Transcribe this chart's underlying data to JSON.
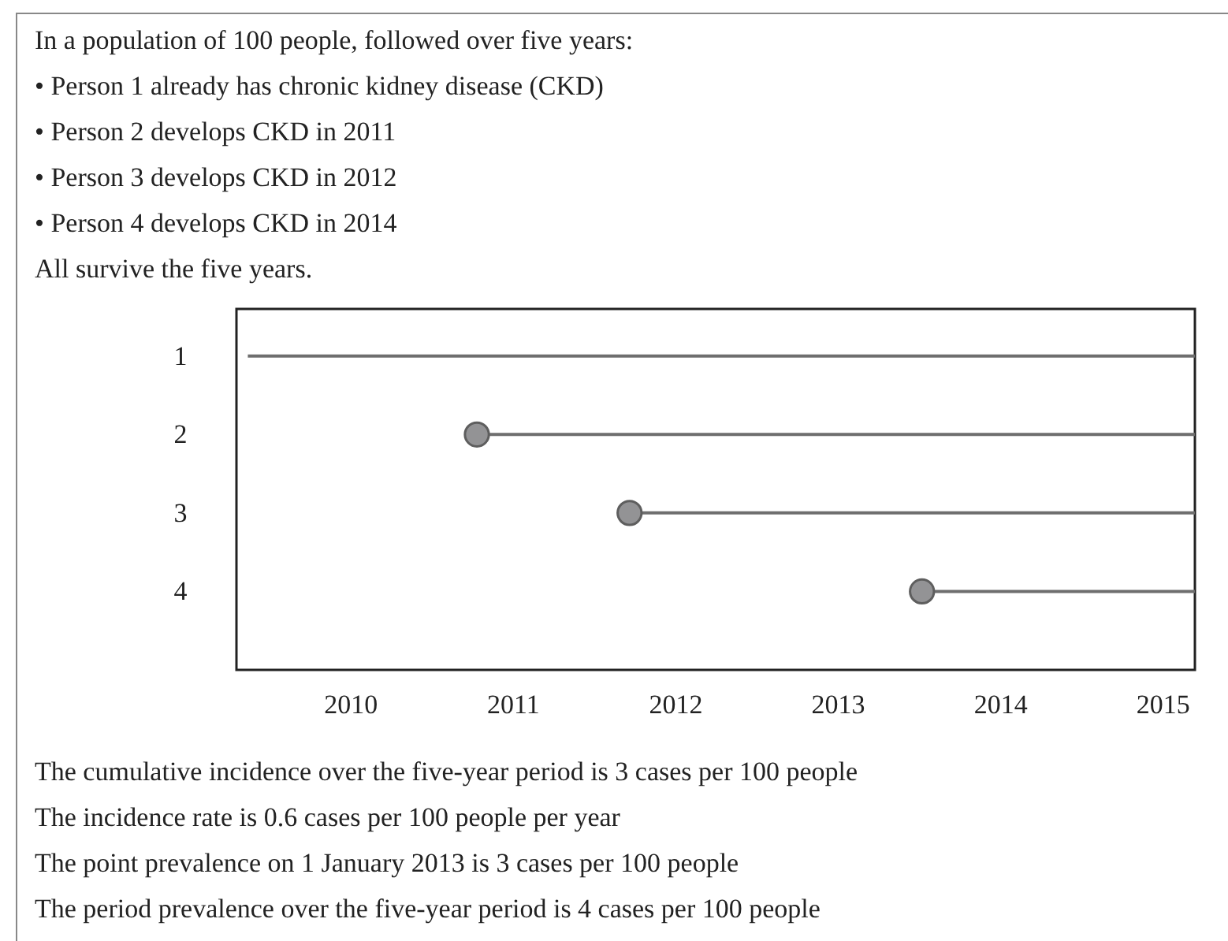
{
  "chart_data": {
    "type": "line",
    "title": "In a population of 100 people, followed over five years:",
    "subtitle": "• Person 1 already has chronic kidney disease (CKD)\n• Person 2 develops CKD in 2011\n• Person 3 develops CKD in 2012\n• Person 4 develops CKD in 2014\nAll survive the five years.",
    "series": [
      {
        "color": "#6e6e6e",
        "marker": "none",
        "x": [
          2009.37,
          2015.2
        ],
        "values": [
          1,
          1
        ]
      },
      {
        "color": "#6e6e6e",
        "marker": "none",
        "x": [
          2010.78,
          2015.2
        ],
        "values": [
          2,
          2
        ]
      },
      {
        "color": "#6e6e6e",
        "marker": "none",
        "x": [
          2011.72,
          2015.2
        ],
        "values": [
          3,
          3
        ]
      },
      {
        "color": "#6e6e6e",
        "marker": "none",
        "x": [
          2013.52,
          2015.2
        ],
        "values": [
          4,
          4
        ]
      },
      {
        "type": "scatter",
        "color": "#939395",
        "marker": "circle",
        "x": [
          2010.78,
          2011.72,
          2013.52
        ],
        "values": [
          2,
          3,
          4
        ]
      }
    ],
    "xlim": [
      2009.3,
      2015.2
    ],
    "xticks": [
      2010,
      2011,
      2012,
      2013,
      2014,
      2015
    ],
    "ylim": [
      5.0,
      0.4
    ],
    "yticks": [
      1,
      2,
      3,
      4
    ],
    "grid": false,
    "annotations": [
      "The cumulative incidence over the five-year period is 3 cases per 100 people",
      "The incidence rate is 0.6 cases per 100 people per year",
      "The point prevalence on 1 January 2013 is 3 cases per 100 people",
      "The period prevalence over the five-year period is 4 cases per 100 people"
    ]
  }
}
